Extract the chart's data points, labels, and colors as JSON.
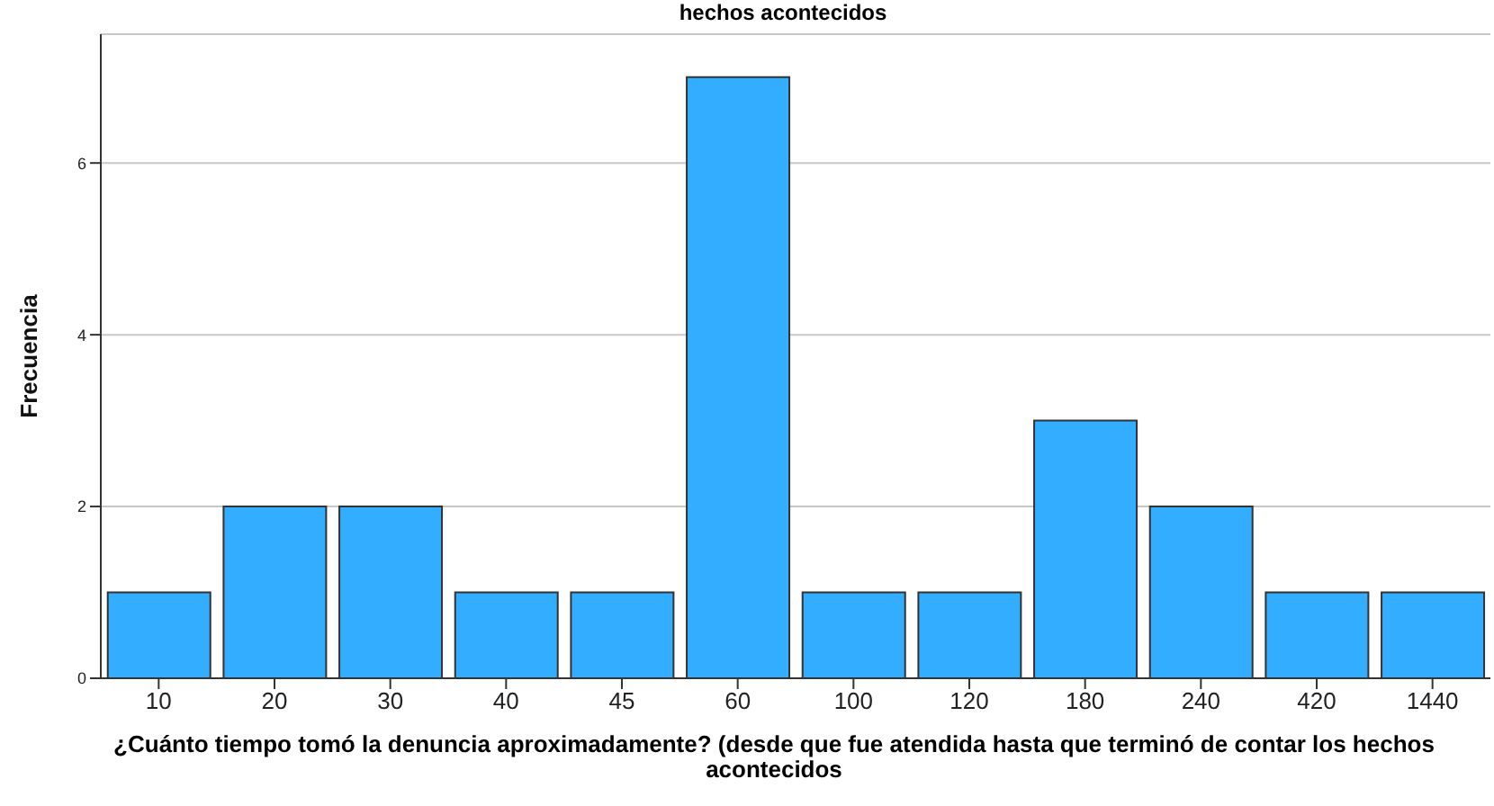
{
  "chart_data": {
    "type": "bar",
    "title": "hechos acontecidos",
    "xlabel": "¿Cuánto tiempo tomó la denuncia aproximadamente? (desde que fue atendida hasta que terminó de contar los hechos acontecidos",
    "ylabel": "Frecuencia",
    "categories": [
      "10",
      "20",
      "30",
      "40",
      "45",
      "60",
      "100",
      "120",
      "180",
      "240",
      "420",
      "1440"
    ],
    "values": [
      1,
      2,
      2,
      1,
      1,
      7,
      1,
      1,
      3,
      2,
      1,
      1
    ],
    "color": "#33adff",
    "ylim": [
      0,
      7.5
    ],
    "yticks": [
      0,
      2,
      4,
      6
    ],
    "grid": "y"
  }
}
